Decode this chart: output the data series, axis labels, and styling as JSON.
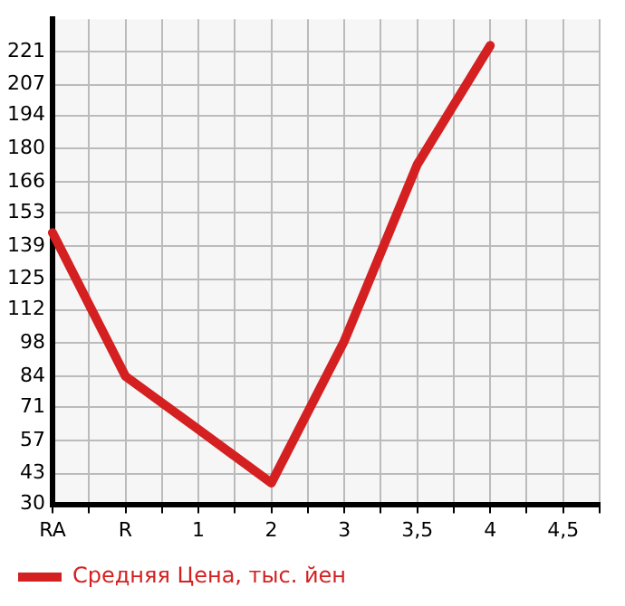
{
  "chart_data": {
    "type": "line",
    "categories": [
      "RA",
      null,
      "R",
      null,
      "1",
      null,
      "2",
      null,
      "3",
      null,
      "3,5",
      null,
      "4",
      null,
      "4,5",
      null
    ],
    "series": [
      {
        "name": "Средняя Цена, тыс. йен",
        "color": "#d42020",
        "values": [
          144.6,
          null,
          84,
          null,
          61.6,
          null,
          39,
          null,
          98.9,
          null,
          173.3,
          null,
          223.5,
          null,
          null,
          null
        ]
      }
    ],
    "ylim": [
      30,
      234.6
    ],
    "yticks": [
      30,
      43,
      57,
      71,
      84,
      98,
      112,
      125,
      139,
      153,
      166,
      180,
      194,
      207,
      221
    ],
    "grid": true,
    "legend": "bottom left",
    "marker": "none",
    "line_style": "solid"
  }
}
